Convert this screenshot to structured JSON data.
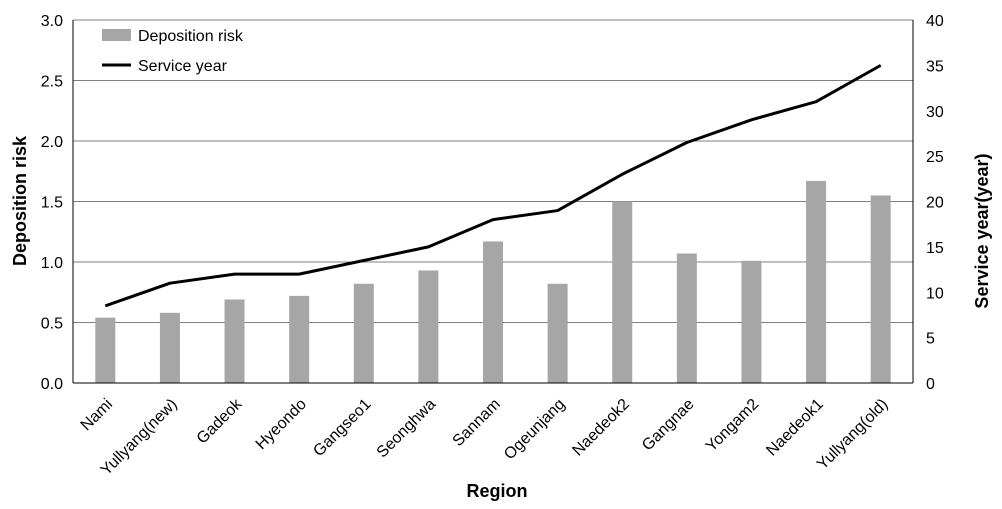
{
  "chart_data": {
    "type": "bar",
    "categories": [
      "Nami",
      "Yullyang(new)",
      "Gadeok",
      "Hyeondo",
      "Gangseo1",
      "Seonghwa",
      "Sannam",
      "Ogeunjang",
      "Naedeok2",
      "Gangnae",
      "Yongam2",
      "Naedeok1",
      "Yullyang(old)"
    ],
    "series": [
      {
        "name": "Deposition risk",
        "type": "bar",
        "axis": "left",
        "color": "#a6a6a6",
        "values": [
          0.54,
          0.58,
          0.69,
          0.72,
          0.82,
          0.93,
          1.17,
          0.82,
          1.5,
          1.07,
          1.01,
          1.67,
          1.55
        ]
      },
      {
        "name": "Service year",
        "type": "line",
        "axis": "right",
        "color": "#000000",
        "values": [
          8.5,
          11,
          12,
          12,
          13.5,
          15,
          18,
          19,
          23,
          26.5,
          29,
          31,
          35
        ]
      }
    ],
    "xlabel": "Region",
    "ylabel": "Deposition risk",
    "y2label": "Service year(year)",
    "ylim": [
      0,
      3.0
    ],
    "y2lim": [
      0,
      40
    ],
    "yticks": [
      "0.0",
      "0.5",
      "1.0",
      "1.5",
      "2.0",
      "2.5",
      "3.0"
    ],
    "y2ticks": [
      "0",
      "5",
      "10",
      "15",
      "20",
      "25",
      "30",
      "35",
      "40"
    ],
    "grid": true,
    "legend_position": "top-left"
  }
}
